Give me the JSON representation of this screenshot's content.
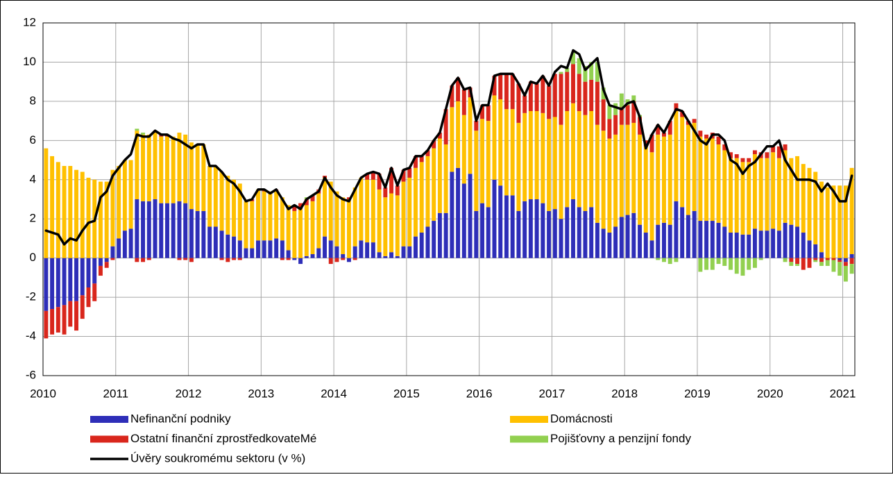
{
  "chart_data": {
    "type": "bar",
    "stacked": true,
    "grid": true,
    "ylim": [
      -6,
      12
    ],
    "yticks": [
      -6,
      -4,
      -2,
      0,
      2,
      4,
      6,
      8,
      10,
      12
    ],
    "categories": [
      "2010",
      null,
      null,
      null,
      null,
      null,
      null,
      null,
      null,
      null,
      null,
      null,
      "2011",
      null,
      null,
      null,
      null,
      null,
      null,
      null,
      null,
      null,
      null,
      null,
      "2012",
      null,
      null,
      null,
      null,
      null,
      null,
      null,
      null,
      null,
      null,
      null,
      "2013",
      null,
      null,
      null,
      null,
      null,
      null,
      null,
      null,
      null,
      null,
      null,
      "2014",
      null,
      null,
      null,
      null,
      null,
      null,
      null,
      null,
      null,
      null,
      null,
      "2015",
      null,
      null,
      null,
      null,
      null,
      null,
      null,
      null,
      null,
      null,
      null,
      "2016",
      null,
      null,
      null,
      null,
      null,
      null,
      null,
      null,
      null,
      null,
      null,
      "2017",
      null,
      null,
      null,
      null,
      null,
      null,
      null,
      null,
      null,
      null,
      null,
      "2018",
      null,
      null,
      null,
      null,
      null,
      null,
      null,
      null,
      null,
      null,
      null,
      "2019",
      null,
      null,
      null,
      null,
      null,
      null,
      null,
      null,
      null,
      null,
      null,
      "2020",
      null,
      null,
      null,
      null,
      null,
      null,
      null,
      null,
      null,
      null,
      null,
      "2021",
      null
    ],
    "series": [
      {
        "name": "Nefinanční podniky",
        "color": "#2e2eb8",
        "values": [
          -2.7,
          -2.6,
          -2.5,
          -2.4,
          -2.2,
          -2.2,
          -1.9,
          -1.5,
          -1.3,
          -0.4,
          -0.2,
          0.6,
          1.0,
          1.4,
          1.5,
          3.0,
          2.9,
          2.9,
          3.0,
          2.8,
          2.8,
          2.8,
          2.9,
          2.8,
          2.5,
          2.4,
          2.4,
          1.6,
          1.6,
          1.4,
          1.2,
          1.1,
          0.9,
          0.5,
          0.5,
          0.9,
          0.9,
          0.9,
          1.0,
          0.9,
          0.4,
          -0.1,
          -0.3,
          0.1,
          0.2,
          0.5,
          1.1,
          0.9,
          0.6,
          0.2,
          -0.2,
          0.6,
          0.9,
          0.8,
          0.8,
          0.3,
          0.1,
          0.3,
          0.1,
          0.6,
          0.6,
          1.1,
          1.3,
          1.6,
          1.9,
          2.3,
          2.3,
          4.4,
          4.6,
          3.8,
          4.3,
          2.4,
          2.8,
          2.6,
          4.0,
          3.7,
          3.2,
          3.2,
          2.4,
          2.9,
          3.0,
          3.0,
          2.8,
          2.4,
          2.5,
          2.0,
          2.6,
          3.0,
          2.6,
          2.4,
          2.6,
          1.8,
          1.5,
          1.3,
          1.6,
          2.1,
          2.2,
          2.3,
          1.7,
          1.3,
          0.9,
          1.7,
          1.8,
          1.7,
          2.9,
          2.6,
          2.2,
          2.4,
          1.9,
          1.9,
          1.9,
          1.8,
          1.6,
          1.3,
          1.3,
          1.2,
          1.2,
          1.5,
          1.4,
          1.4,
          1.5,
          1.4,
          1.8,
          1.7,
          1.6,
          1.3,
          0.9,
          0.7,
          0.3,
          0.0,
          0.0,
          -0.1,
          -0.2,
          0.2
        ]
      },
      {
        "name": "Domácnosti",
        "color": "#ffc000",
        "values": [
          5.6,
          5.2,
          4.9,
          4.7,
          4.7,
          4.5,
          4.4,
          4.1,
          4.0,
          3.9,
          3.9,
          3.9,
          3.7,
          3.6,
          3.5,
          3.5,
          3.4,
          3.4,
          3.4,
          3.4,
          3.4,
          3.4,
          3.5,
          3.5,
          3.4,
          3.4,
          3.4,
          3.1,
          3.1,
          3.0,
          3.0,
          2.9,
          2.9,
          2.4,
          2.4,
          2.6,
          2.5,
          2.5,
          2.4,
          2.2,
          2.3,
          2.4,
          2.5,
          2.6,
          2.7,
          2.8,
          3.0,
          3.0,
          2.8,
          2.9,
          3.0,
          3.0,
          3.2,
          3.2,
          3.2,
          3.2,
          3.0,
          3.0,
          3.1,
          3.3,
          3.5,
          3.5,
          3.6,
          3.6,
          3.7,
          3.8,
          3.5,
          3.3,
          3.4,
          3.5,
          3.9,
          4.1,
          4.3,
          4.4,
          4.3,
          4.4,
          4.4,
          4.4,
          4.5,
          4.5,
          4.5,
          4.5,
          4.6,
          4.7,
          4.7,
          4.8,
          4.9,
          4.9,
          4.9,
          4.9,
          4.9,
          5.0,
          5.0,
          4.8,
          4.7,
          4.7,
          4.6,
          4.6,
          4.6,
          4.4,
          4.5,
          4.6,
          4.4,
          4.6,
          4.6,
          4.6,
          4.6,
          4.5,
          4.3,
          4.2,
          4.2,
          4.0,
          3.9,
          3.8,
          3.8,
          3.7,
          3.7,
          3.8,
          3.7,
          3.7,
          3.9,
          3.7,
          3.7,
          3.4,
          3.6,
          3.5,
          3.7,
          3.7,
          3.6,
          3.6,
          3.7,
          3.7,
          3.7,
          4.4
        ]
      },
      {
        "name": "Ostatní finanční zprostředkovateMé",
        "color": "#d9261c",
        "values": [
          -1.4,
          -1.3,
          -1.3,
          -1.5,
          -1.3,
          -1.5,
          -1.2,
          -1.0,
          -0.9,
          -0.5,
          -0.3,
          -0.1,
          0.0,
          0.0,
          0.0,
          -0.2,
          -0.2,
          -0.1,
          0.1,
          0.1,
          0.1,
          0.0,
          -0.1,
          -0.1,
          -0.2,
          0.0,
          0.0,
          0.0,
          0.0,
          -0.1,
          -0.2,
          -0.1,
          -0.1,
          0.0,
          0.1,
          0.0,
          0.1,
          0.0,
          0.1,
          -0.1,
          -0.1,
          0.3,
          0.3,
          0.3,
          0.3,
          0.2,
          0.1,
          -0.3,
          -0.2,
          -0.1,
          0.1,
          -0.1,
          0.0,
          0.3,
          0.4,
          0.8,
          0.5,
          1.3,
          0.5,
          0.6,
          0.5,
          0.6,
          0.3,
          0.3,
          0.4,
          0.3,
          1.8,
          1.1,
          1.2,
          1.3,
          0.5,
          0.5,
          0.7,
          0.8,
          1.0,
          1.3,
          1.8,
          1.8,
          2.0,
          0.9,
          1.5,
          1.4,
          1.9,
          1.7,
          2.2,
          2.6,
          2.0,
          2.0,
          1.9,
          1.7,
          1.6,
          2.2,
          1.6,
          1.0,
          1.0,
          0.9,
          1.0,
          1.1,
          0.9,
          0.3,
          0.9,
          0.5,
          0.2,
          0.7,
          0.4,
          0.3,
          0.2,
          0.2,
          0.3,
          0.2,
          0.3,
          0.4,
          0.3,
          0.3,
          0.2,
          0.2,
          0.2,
          0.2,
          0.3,
          0.3,
          0.3,
          0.6,
          0.3,
          -0.2,
          -0.3,
          -0.6,
          -0.5,
          -0.1,
          -0.2,
          -0.1,
          -0.1,
          -0.1,
          -0.2,
          -0.3
        ]
      },
      {
        "name": "Pojišťovny a penzijní fondy",
        "color": "#92d050",
        "values": [
          0.0,
          0.0,
          0.0,
          0.0,
          0.0,
          0.0,
          0.0,
          0.0,
          0.0,
          0.0,
          0.0,
          0.0,
          0.0,
          0.0,
          0.0,
          0.1,
          0.1,
          0.0,
          0.0,
          0.0,
          0.0,
          0.0,
          0.0,
          0.0,
          0.0,
          0.0,
          0.0,
          0.0,
          0.0,
          0.0,
          0.0,
          0.0,
          0.0,
          0.0,
          0.0,
          0.0,
          0.0,
          0.0,
          0.0,
          0.0,
          0.0,
          0.0,
          0.0,
          0.1,
          0.0,
          0.0,
          0.0,
          0.0,
          0.0,
          0.0,
          0.0,
          0.0,
          0.0,
          0.0,
          0.0,
          0.0,
          0.0,
          0.0,
          0.0,
          0.0,
          0.0,
          0.0,
          0.0,
          0.0,
          0.0,
          0.0,
          0.0,
          0.0,
          0.0,
          0.0,
          0.0,
          0.0,
          0.0,
          0.0,
          0.0,
          0.0,
          0.0,
          0.0,
          0.0,
          0.0,
          0.0,
          0.0,
          0.0,
          0.0,
          0.0,
          0.1,
          0.2,
          0.6,
          0.8,
          0.8,
          0.9,
          1.0,
          0.6,
          0.7,
          0.6,
          0.7,
          0.3,
          0.3,
          0.1,
          0.0,
          0.0,
          -0.1,
          -0.2,
          -0.3,
          -0.2,
          0.0,
          0.0,
          0.0,
          -0.7,
          -0.6,
          -0.6,
          -0.3,
          -0.4,
          -0.6,
          -0.8,
          -0.9,
          -0.6,
          -0.5,
          -0.1,
          0.0,
          0.0,
          0.0,
          -0.2,
          -0.2,
          -0.1,
          0.0,
          0.0,
          -0.1,
          -0.2,
          -0.3,
          -0.6,
          -0.7,
          -0.8,
          -0.5
        ]
      },
      {
        "name": "Úvěry soukromému sektoru (v %)",
        "color": "#000000",
        "type": "line",
        "values": [
          1.4,
          1.3,
          1.2,
          0.7,
          1.0,
          0.9,
          1.4,
          1.8,
          1.9,
          3.1,
          3.4,
          4.2,
          4.6,
          5.0,
          5.3,
          6.3,
          6.2,
          6.2,
          6.5,
          6.3,
          6.3,
          6.1,
          6.0,
          5.8,
          5.6,
          5.8,
          5.8,
          4.7,
          4.7,
          4.4,
          4.0,
          3.8,
          3.4,
          2.9,
          3.0,
          3.5,
          3.5,
          3.3,
          3.5,
          3.0,
          2.5,
          2.7,
          2.5,
          3.0,
          3.2,
          3.4,
          4.1,
          3.6,
          3.2,
          3.0,
          2.9,
          3.5,
          4.1,
          4.3,
          4.4,
          4.3,
          3.6,
          4.6,
          3.7,
          4.5,
          4.6,
          5.2,
          5.2,
          5.5,
          6.0,
          6.4,
          7.6,
          8.8,
          9.2,
          8.6,
          8.7,
          7.0,
          7.8,
          7.8,
          9.3,
          9.4,
          9.4,
          9.4,
          8.9,
          8.3,
          9.0,
          8.9,
          9.3,
          8.8,
          9.5,
          9.8,
          9.7,
          10.6,
          10.4,
          9.6,
          9.9,
          10.2,
          8.6,
          7.8,
          7.7,
          7.6,
          7.9,
          8.0,
          7.2,
          5.6,
          6.3,
          6.8,
          6.4,
          7.0,
          7.6,
          7.5,
          7.0,
          6.5,
          6.0,
          5.8,
          6.3,
          6.3,
          6.0,
          5.0,
          4.8,
          4.3,
          4.7,
          4.9,
          5.3,
          5.7,
          5.7,
          6.0,
          5.0,
          4.5,
          4.0,
          4.0,
          4.0,
          3.9,
          3.4,
          3.8,
          3.4,
          2.9,
          2.9,
          4.2
        ]
      }
    ]
  }
}
